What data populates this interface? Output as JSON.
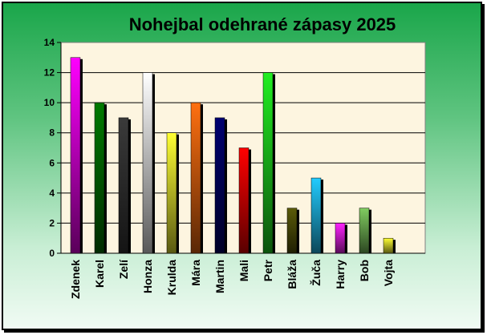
{
  "chart_data": {
    "type": "bar",
    "title": "Nohejbal odehrané zápasy 2025",
    "categories": [
      "Zdenek",
      "Karel",
      "Zelí",
      "Honza",
      "Krulda",
      "Mára",
      "Martin",
      "Mali",
      "Petr",
      "Bláža",
      "Žuča",
      "Harry",
      "Bob",
      "Vojta"
    ],
    "values": [
      13,
      10,
      9,
      12,
      8,
      10,
      9,
      7,
      12,
      3,
      5,
      2,
      3,
      1
    ],
    "colors": [
      "#ff00ff",
      "#007a00",
      "#3a3a3a",
      "#ffffff",
      "#ffff33",
      "#ff7010",
      "#000070",
      "#ff0000",
      "#22ee22",
      "#5a5a08",
      "#22ccff",
      "#ff22ff",
      "#80cc60",
      "#ffff33"
    ],
    "yticks": [
      "0",
      "2",
      "4",
      "6",
      "8",
      "10",
      "12",
      "14"
    ],
    "ylim": [
      0,
      14
    ],
    "grid": true,
    "legend": "none",
    "plot_background": "#fdf5e0"
  }
}
